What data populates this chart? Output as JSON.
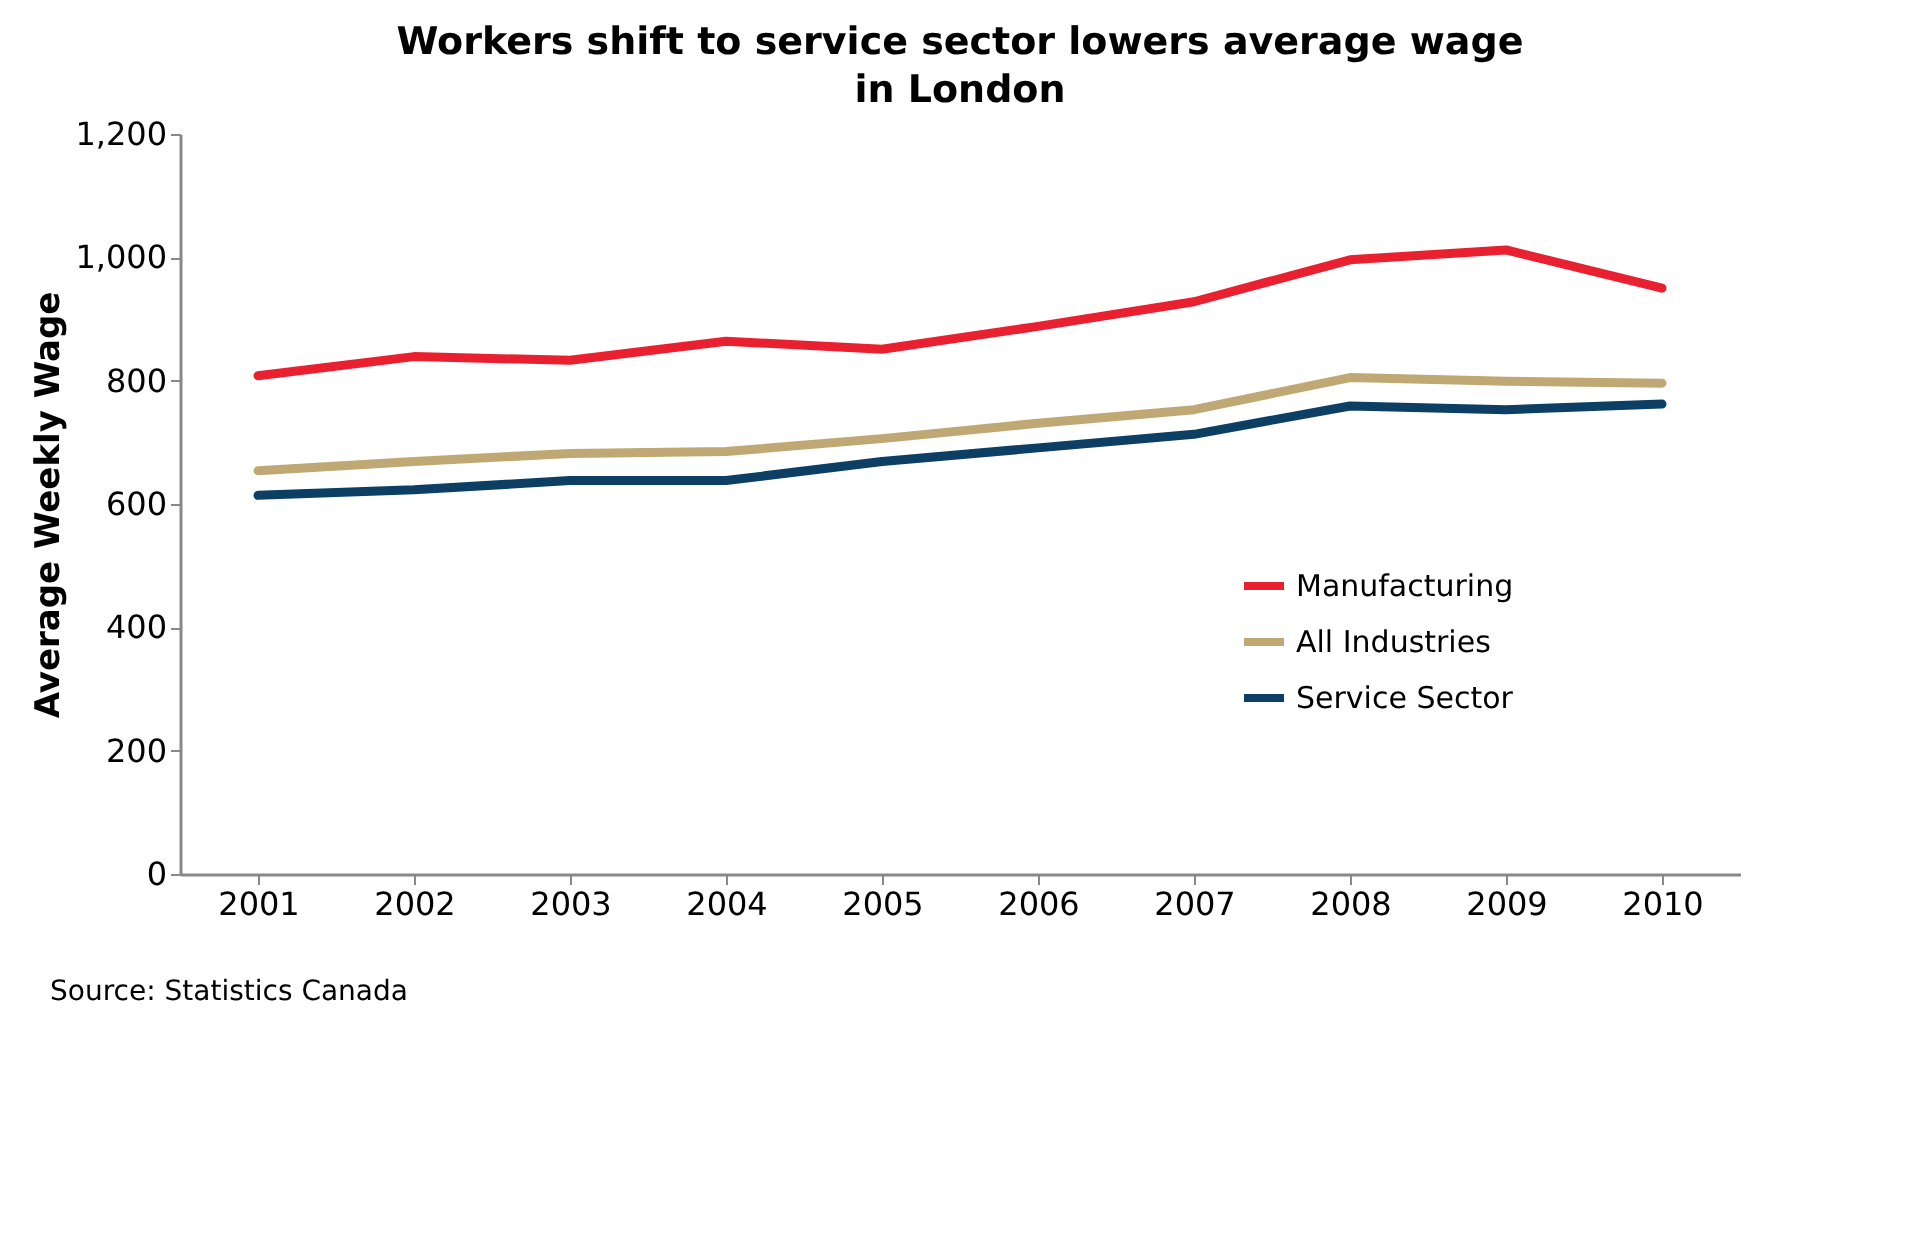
{
  "chart_data": {
    "type": "line",
    "title": "Workers shift to service sector lowers average wage in London",
    "ylabel": "Average Weekly Wage",
    "categories": [
      "2001",
      "2002",
      "2003",
      "2004",
      "2005",
      "2006",
      "2007",
      "2008",
      "2009",
      "2010"
    ],
    "series": [
      {
        "name": "Manufacturing",
        "color": "#e8202f",
        "values": [
          808,
          839,
          833,
          864,
          851,
          888,
          928,
          996,
          1012,
          950
        ]
      },
      {
        "name": "All Industries",
        "color": "#bfa874",
        "values": [
          654,
          669,
          682,
          685,
          706,
          731,
          753,
          805,
          799,
          796
        ]
      },
      {
        "name": "Service Sector",
        "color": "#0c3f63",
        "values": [
          614,
          623,
          638,
          638,
          669,
          691,
          713,
          759,
          753,
          762
        ]
      }
    ],
    "ylim": [
      0,
      1200
    ],
    "yticks": [
      0,
      {
        "value": 200,
        "label": "200"
      },
      400,
      600,
      800,
      {
        "value": 1000,
        "label": "1,000"
      },
      {
        "value": 1200,
        "label": "1,200"
      }
    ],
    "grid": false,
    "legend": "right",
    "marker": "none",
    "line_style": "solid",
    "annotations": [
      "Source:  Statistics Canada"
    ]
  }
}
